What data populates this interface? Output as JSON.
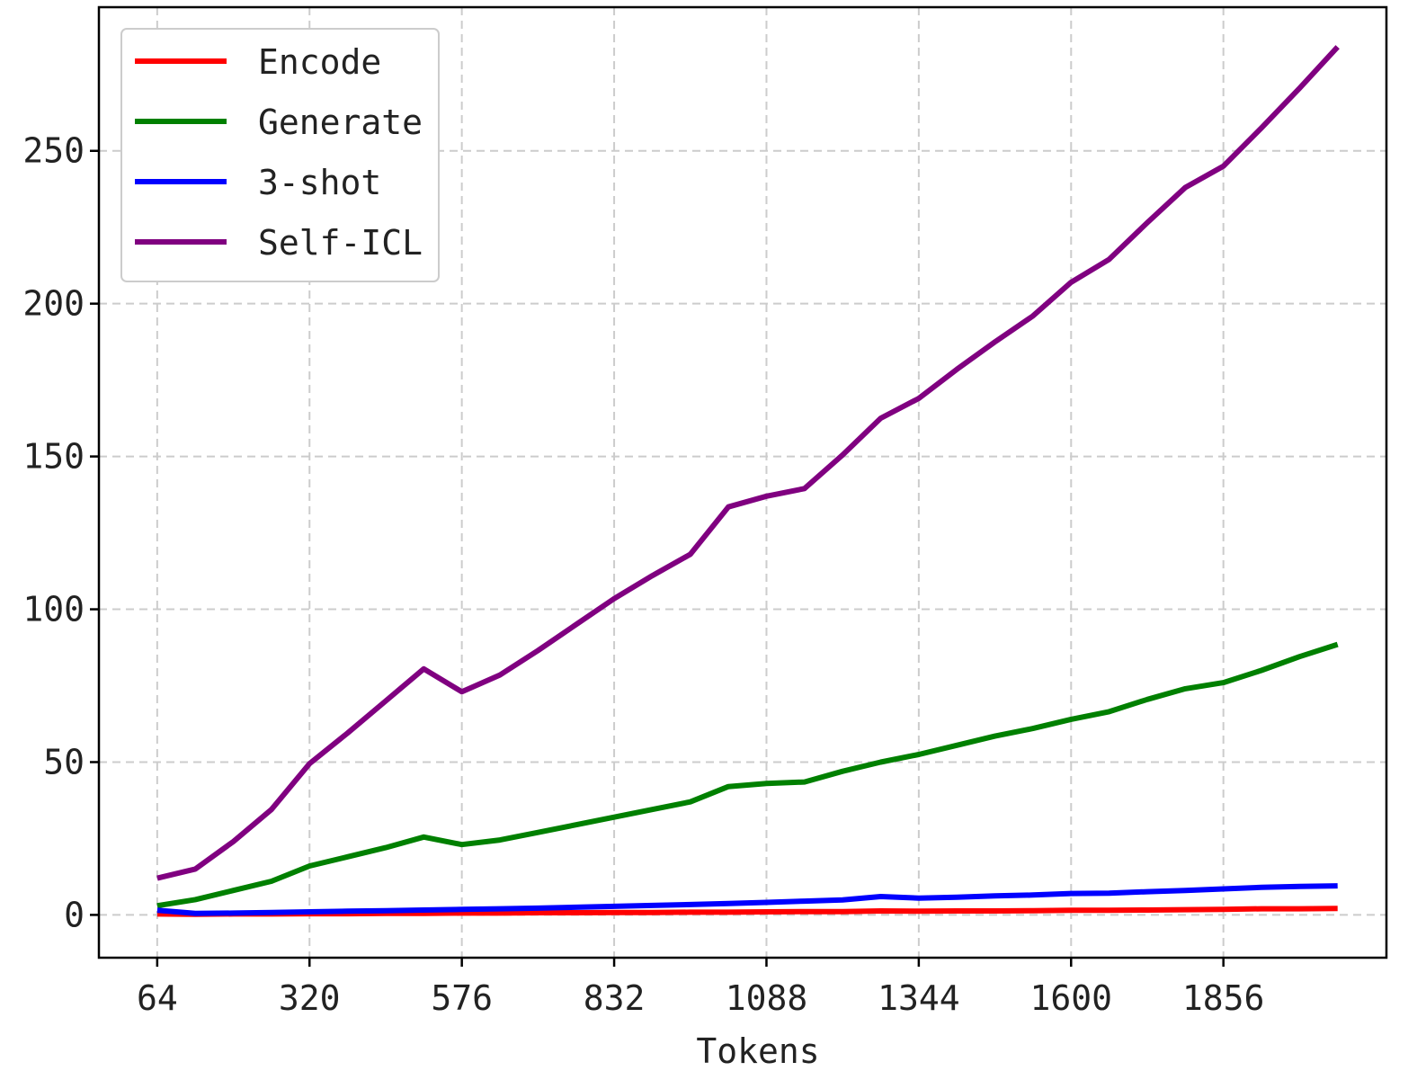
{
  "chart_data": {
    "type": "line",
    "title": "",
    "xlabel": "Tokens",
    "ylabel": "",
    "x": [
      64,
      128,
      192,
      256,
      320,
      384,
      448,
      512,
      576,
      640,
      704,
      768,
      832,
      896,
      960,
      1024,
      1088,
      1152,
      1216,
      1280,
      1344,
      1408,
      1472,
      1536,
      1600,
      1664,
      1728,
      1792,
      1856,
      1920,
      1984,
      2048
    ],
    "xticks": [
      64,
      320,
      576,
      832,
      1088,
      1344,
      1600,
      1856
    ],
    "yticks": [
      0,
      50,
      100,
      150,
      200,
      250
    ],
    "xlim": [
      -34,
      2130
    ],
    "ylim": [
      -14,
      297
    ],
    "grid": true,
    "legend_position": "top-left",
    "series": [
      {
        "name": "Encode",
        "color": "#ff0000",
        "values": [
          0.3,
          0.2,
          0.3,
          0.3,
          0.4,
          0.4,
          0.5,
          0.5,
          0.6,
          0.6,
          0.7,
          0.7,
          0.8,
          0.8,
          0.9,
          0.9,
          1.0,
          1.1,
          1.1,
          1.3,
          1.2,
          1.3,
          1.3,
          1.4,
          1.5,
          1.5,
          1.6,
          1.7,
          1.8,
          2.0,
          2.0,
          2.1
        ]
      },
      {
        "name": "Generate",
        "color": "#008000",
        "values": [
          3,
          5,
          8,
          11,
          16,
          19,
          22,
          25.5,
          23,
          24.5,
          27,
          29.5,
          32,
          34.5,
          37,
          42,
          43,
          43.5,
          47,
          50,
          52.5,
          55.5,
          58.5,
          61,
          64,
          66.5,
          70.5,
          74,
          76,
          80,
          84.5,
          88.5
        ]
      },
      {
        "name": "3-shot",
        "color": "#0000ff",
        "values": [
          1.5,
          0.5,
          0.6,
          0.8,
          1.0,
          1.2,
          1.4,
          1.6,
          1.8,
          2.0,
          2.2,
          2.5,
          2.8,
          3.1,
          3.4,
          3.7,
          4.1,
          4.5,
          4.9,
          6.0,
          5.5,
          5.8,
          6.2,
          6.5,
          7.0,
          7.1,
          7.6,
          8.0,
          8.5,
          9.0,
          9.3,
          9.5
        ]
      },
      {
        "name": "Self-ICL",
        "color": "#800080",
        "values": [
          12,
          15,
          24,
          34.5,
          49.5,
          59.5,
          70,
          80.5,
          73,
          78.5,
          86.5,
          95,
          103.5,
          111,
          118,
          133.5,
          137,
          139.5,
          150.5,
          162.5,
          169,
          178.5,
          187.5,
          196,
          207,
          214.5,
          226.5,
          238,
          245,
          257.5,
          270.5,
          284
        ]
      }
    ]
  }
}
